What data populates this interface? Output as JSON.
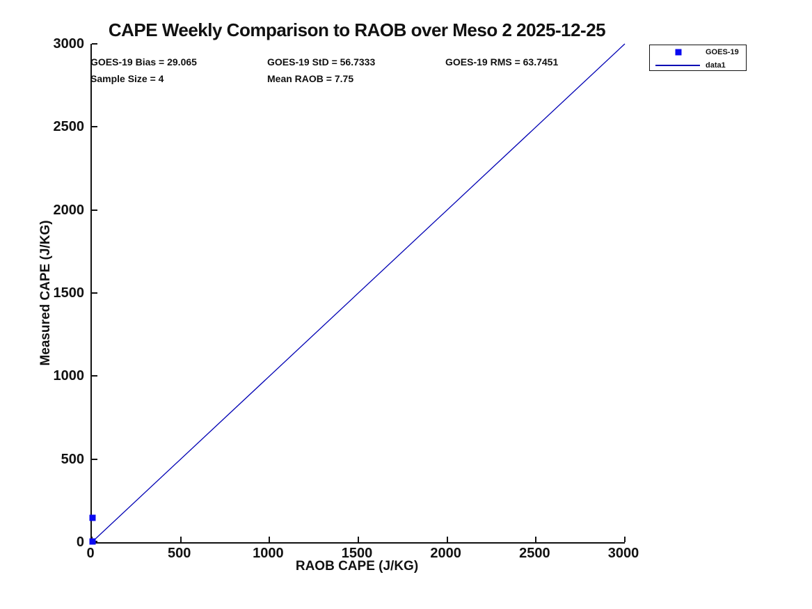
{
  "title": "CAPE Weekly Comparison to RAOB over Meso 2 2025-12-25",
  "stats": {
    "bias": "GOES-19 Bias = 29.065",
    "std": "GOES-19 StD = 56.7333",
    "rms": "GOES-19 RMS = 63.7451",
    "sample_size": "Sample Size = 4",
    "mean_raob": "Mean RAOB = 7.75"
  },
  "legend": {
    "items": [
      {
        "label": "GOES-19",
        "swatch": "square-marker"
      },
      {
        "label": "data1",
        "swatch": "line"
      }
    ]
  },
  "colors": {
    "marker": "#0a0af0",
    "line": "#0000b4",
    "axis": "#111111",
    "text": "#111111"
  },
  "chart_data": {
    "type": "scatter",
    "title": "CAPE Weekly Comparison to RAOB over Meso 2 2025-12-25",
    "xlabel": "RAOB CAPE (J/KG)",
    "ylabel": "Measured CAPE (J/KG)",
    "xlim": [
      0,
      3000
    ],
    "ylim": [
      0,
      3000
    ],
    "xticks": [
      0,
      500,
      1000,
      1500,
      2000,
      2500,
      3000
    ],
    "yticks": [
      0,
      500,
      1000,
      1500,
      2000,
      2500,
      3000
    ],
    "grid": false,
    "legend_position": "outside-top-right",
    "series": [
      {
        "name": "GOES-19",
        "type": "scatter",
        "marker": "square",
        "marker_size": 9,
        "points": [
          [
            5,
            147
          ],
          [
            5,
            5
          ]
        ],
        "note": "markers cluster at origin; sample size 4 implies overlapping points"
      },
      {
        "name": "data1",
        "type": "line",
        "points": [
          [
            0,
            0
          ],
          [
            3000,
            3000
          ]
        ]
      }
    ],
    "stats_values": {
      "bias": 29.065,
      "std": 56.7333,
      "rms": 63.7451,
      "sample_size": 4,
      "mean_raob": 7.75
    }
  }
}
